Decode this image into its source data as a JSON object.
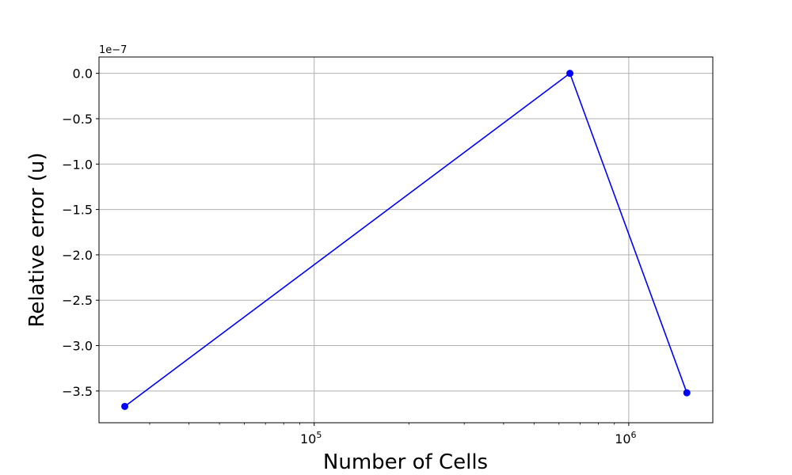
{
  "chart_data": {
    "type": "line",
    "xscale": "log",
    "xlabel": "Number of Cells",
    "ylabel": "Relative error (u)",
    "y_offset_label": "1e−7",
    "x_ticks": [
      {
        "value": 100000,
        "base": "10",
        "exp": "5"
      },
      {
        "value": 1000000,
        "base": "10",
        "exp": "6"
      }
    ],
    "y_ticks": [
      {
        "value": 0.0,
        "label": "0.0"
      },
      {
        "value": -0.5,
        "label": "−0.5"
      },
      {
        "value": -1.0,
        "label": "−1.0"
      },
      {
        "value": -1.5,
        "label": "−1.5"
      },
      {
        "value": -2.0,
        "label": "−2.0"
      },
      {
        "value": -2.5,
        "label": "−2.5"
      },
      {
        "value": -3.0,
        "label": "−3.0"
      },
      {
        "value": -3.5,
        "label": "−3.5"
      }
    ],
    "xlim": [
      20700,
      1850000
    ],
    "ylim": [
      -3.85,
      0.18
    ],
    "grid": true,
    "series": [
      {
        "color": "#0000ff",
        "marker": "circle",
        "x": [
          25000,
          650000,
          1530000
        ],
        "y": [
          -3.67,
          0.0,
          -3.52
        ]
      }
    ]
  }
}
